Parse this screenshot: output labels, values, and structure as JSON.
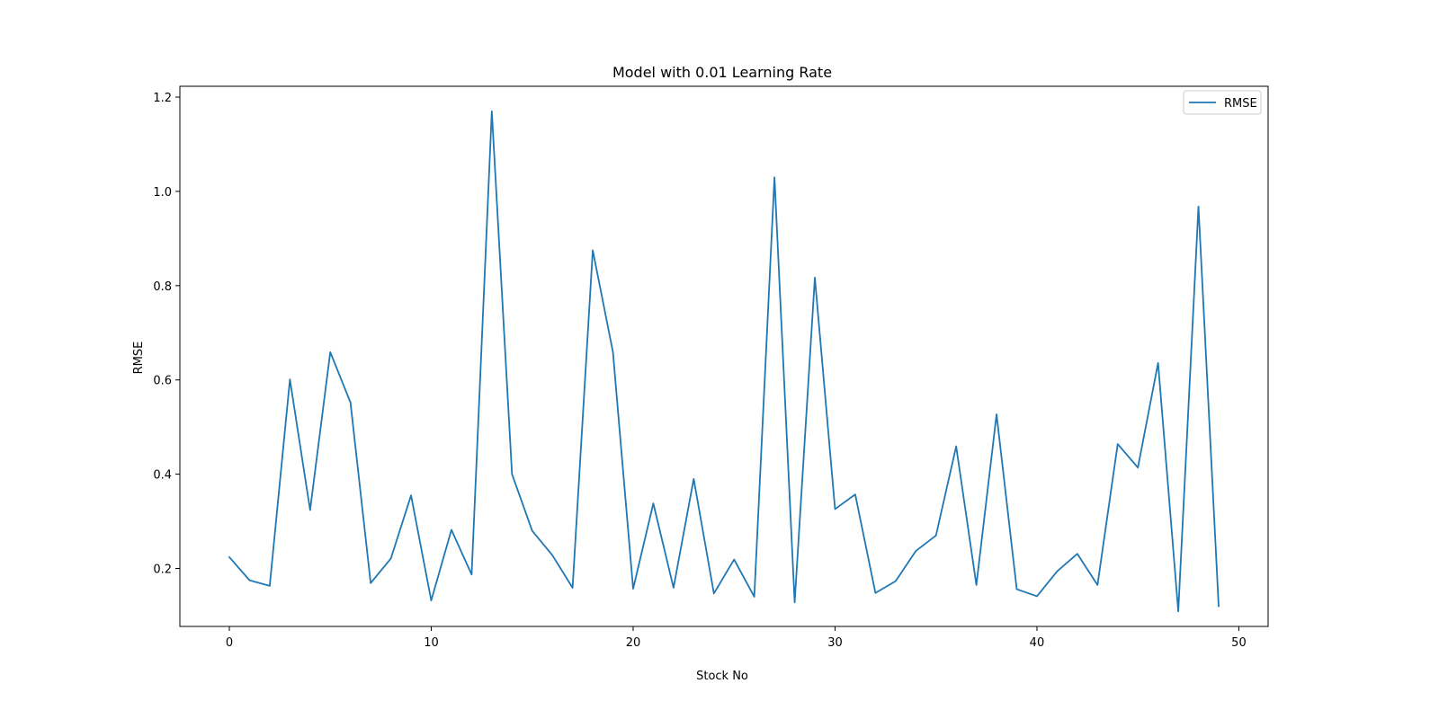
{
  "chart_data": {
    "type": "line",
    "title": "Model with 0.01 Learning Rate",
    "xlabel": "Stock No",
    "ylabel": "RMSE",
    "xlim": [
      -2.45,
      51.45
    ],
    "ylim": [
      0.077,
      1.223
    ],
    "xticks": [
      0,
      10,
      20,
      30,
      40,
      50
    ],
    "yticks": [
      0.2,
      0.4,
      0.6,
      0.8,
      1.0,
      1.2
    ],
    "xtick_labels": [
      "0",
      "10",
      "20",
      "30",
      "40",
      "50"
    ],
    "ytick_labels": [
      "0.2",
      "0.4",
      "0.6",
      "0.8",
      "1.0",
      "1.2"
    ],
    "grid": false,
    "legend_position": "top-right",
    "series": [
      {
        "name": "RMSE",
        "color": "#1f77b4",
        "x": [
          0,
          1,
          2,
          3,
          4,
          5,
          6,
          7,
          8,
          9,
          10,
          11,
          12,
          13,
          14,
          15,
          16,
          17,
          18,
          19,
          20,
          21,
          22,
          23,
          24,
          25,
          26,
          27,
          28,
          29,
          30,
          31,
          32,
          33,
          34,
          35,
          36,
          37,
          38,
          39,
          40,
          41,
          42,
          43,
          44,
          45,
          46,
          47,
          48,
          49
        ],
        "values": [
          0.224,
          0.175,
          0.163,
          0.601,
          0.324,
          0.659,
          0.552,
          0.169,
          0.221,
          0.355,
          0.132,
          0.282,
          0.187,
          1.17,
          0.4,
          0.28,
          0.228,
          0.159,
          0.875,
          0.659,
          0.157,
          0.338,
          0.159,
          0.39,
          0.147,
          0.219,
          0.14,
          1.03,
          0.128,
          0.817,
          0.326,
          0.357,
          0.148,
          0.173,
          0.237,
          0.27,
          0.459,
          0.165,
          0.527,
          0.156,
          0.141,
          0.194,
          0.231,
          0.165,
          0.464,
          0.414,
          0.636,
          0.109,
          0.968,
          0.12
        ]
      }
    ]
  }
}
